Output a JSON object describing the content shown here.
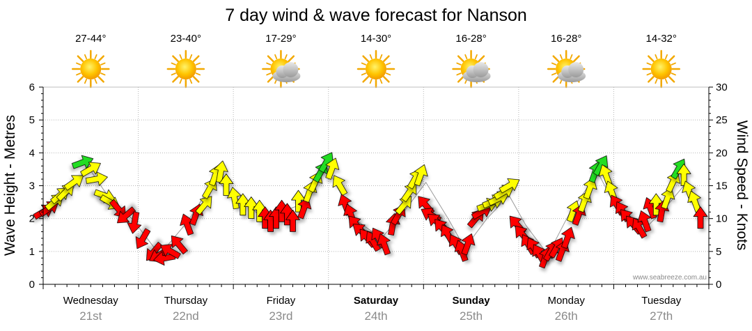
{
  "chart_data": {
    "type": "line",
    "title": "7 day wind & wave forecast for Nanson",
    "ylabel": "Wave Height - Metres",
    "y2label": "Wind Speed - Knots",
    "ylim": [
      0,
      6
    ],
    "y2lim": [
      0,
      30
    ],
    "yticks": [
      "0",
      "1",
      "2",
      "3",
      "4",
      "5",
      "6"
    ],
    "y2ticks": [
      "0",
      "5",
      "10",
      "15",
      "20",
      "25",
      "30"
    ],
    "watermark": "www.seabreeze.com.au",
    "days": [
      {
        "day": "Wednesday",
        "date": "21st",
        "temp": "27-44°",
        "weather": "sunny",
        "bold": false
      },
      {
        "day": "Thursday",
        "date": "22nd",
        "temp": "23-40°",
        "weather": "sunny",
        "bold": false
      },
      {
        "day": "Friday",
        "date": "23rd",
        "temp": "17-29°",
        "weather": "partly-cloudy",
        "bold": false
      },
      {
        "day": "Saturday",
        "date": "24th",
        "temp": "14-30°",
        "weather": "sunny",
        "bold": true
      },
      {
        "day": "Sunday",
        "date": "25th",
        "temp": "16-28°",
        "weather": "partly-cloudy",
        "bold": true
      },
      {
        "day": "Monday",
        "date": "26th",
        "temp": "16-28°",
        "weather": "partly-cloudy",
        "bold": false
      },
      {
        "day": "Tuesday",
        "date": "27th",
        "temp": "14-32°",
        "weather": "sunny",
        "bold": false
      }
    ],
    "colors": {
      "red": "#ff0000",
      "yellow": "#ffff00",
      "green": "#22dd22"
    },
    "wind": {
      "unit": "knots",
      "description": "wind speed at each time step (x in days from start of chart); arrow colour, rotation in degrees",
      "points": [
        {
          "x": 0.0,
          "speed": 11.0,
          "color": "red",
          "rot": 60
        },
        {
          "x": 0.1,
          "speed": 11.5,
          "color": "red",
          "rot": 55
        },
        {
          "x": 0.2,
          "speed": 12.5,
          "color": "yellow",
          "rot": 50
        },
        {
          "x": 0.3,
          "speed": 13.5,
          "color": "yellow",
          "rot": 50
        },
        {
          "x": 0.4,
          "speed": 14.0,
          "color": "yellow",
          "rot": 45
        },
        {
          "x": 0.55,
          "speed": 15.5,
          "color": "yellow",
          "rot": 55
        },
        {
          "x": 0.7,
          "speed": 18.5,
          "color": "green",
          "rot": 70
        },
        {
          "x": 0.85,
          "speed": 17.5,
          "color": "yellow",
          "rot": 60
        },
        {
          "x": 0.95,
          "speed": 16.0,
          "color": "yellow",
          "rot": 80
        },
        {
          "x": 1.1,
          "speed": 13.5,
          "color": "yellow",
          "rot": 110
        },
        {
          "x": 1.2,
          "speed": 12.5,
          "color": "yellow",
          "rot": 120
        },
        {
          "x": 1.35,
          "speed": 11.5,
          "color": "red",
          "rot": 140
        },
        {
          "x": 1.5,
          "speed": 10.5,
          "color": "red",
          "rot": 230
        },
        {
          "x": 1.65,
          "speed": 9.5,
          "color": "red",
          "rot": 190
        },
        {
          "x": 1.8,
          "speed": 7.0,
          "color": "red",
          "rot": 210
        },
        {
          "x": 2.0,
          "speed": 5.0,
          "color": "red",
          "rot": 220
        },
        {
          "x": 2.1,
          "speed": 4.5,
          "color": "red",
          "rot": 240
        },
        {
          "x": 2.2,
          "speed": 4.0,
          "color": "red",
          "rot": 260
        },
        {
          "x": 2.3,
          "speed": 5.0,
          "color": "red",
          "rot": 300
        },
        {
          "x": 2.45,
          "speed": 6.0,
          "color": "red",
          "rot": 320
        },
        {
          "x": 2.6,
          "speed": 9.0,
          "color": "red",
          "rot": 340
        },
        {
          "x": 2.75,
          "speed": 10.5,
          "color": "red",
          "rot": 20
        },
        {
          "x": 2.9,
          "speed": 12.0,
          "color": "yellow",
          "rot": 40
        },
        {
          "x": 3.0,
          "speed": 14.5,
          "color": "yellow",
          "rot": 30
        },
        {
          "x": 3.1,
          "speed": 16.5,
          "color": "yellow",
          "rot": 20
        },
        {
          "x": 3.2,
          "speed": 17.0,
          "color": "yellow",
          "rot": 10
        },
        {
          "x": 3.3,
          "speed": 15.0,
          "color": "yellow",
          "rot": 0
        },
        {
          "x": 3.45,
          "speed": 13.0,
          "color": "yellow",
          "rot": 350
        },
        {
          "x": 3.6,
          "speed": 12.0,
          "color": "yellow",
          "rot": 0
        },
        {
          "x": 3.75,
          "speed": 11.5,
          "color": "yellow",
          "rot": 0
        },
        {
          "x": 3.9,
          "speed": 11.0,
          "color": "yellow",
          "rot": 0
        },
        {
          "x": 4.0,
          "speed": 10.0,
          "color": "red",
          "rot": 0
        },
        {
          "x": 4.1,
          "speed": 9.5,
          "color": "red",
          "rot": 0
        },
        {
          "x": 4.2,
          "speed": 10.0,
          "color": "red",
          "rot": 0
        },
        {
          "x": 4.3,
          "speed": 11.0,
          "color": "red",
          "rot": 0
        },
        {
          "x": 4.4,
          "speed": 10.5,
          "color": "red",
          "rot": 0
        },
        {
          "x": 4.5,
          "speed": 9.5,
          "color": "red",
          "rot": 0
        },
        {
          "x": 4.6,
          "speed": 12.5,
          "color": "yellow",
          "rot": 0
        },
        {
          "x": 4.7,
          "speed": 11.5,
          "color": "red",
          "rot": 20
        },
        {
          "x": 4.8,
          "speed": 14.0,
          "color": "yellow",
          "rot": 20
        },
        {
          "x": 4.9,
          "speed": 15.5,
          "color": "yellow",
          "rot": 25
        },
        {
          "x": 5.0,
          "speed": 17.0,
          "color": "green",
          "rot": 30
        },
        {
          "x": 5.1,
          "speed": 18.5,
          "color": "green",
          "rot": 30
        },
        {
          "x": 5.2,
          "speed": 17.5,
          "color": "yellow",
          "rot": 20
        },
        {
          "x": 5.35,
          "speed": 15.0,
          "color": "yellow",
          "rot": 330
        },
        {
          "x": 5.45,
          "speed": 12.0,
          "color": "red",
          "rot": 340
        },
        {
          "x": 5.55,
          "speed": 10.5,
          "color": "red",
          "rot": 340
        },
        {
          "x": 5.65,
          "speed": 9.0,
          "color": "red",
          "rot": 320
        },
        {
          "x": 5.75,
          "speed": 8.0,
          "color": "red",
          "rot": 310
        },
        {
          "x": 5.85,
          "speed": 7.0,
          "color": "red",
          "rot": 320
        },
        {
          "x": 5.95,
          "speed": 6.5,
          "color": "red",
          "rot": 330
        },
        {
          "x": 6.05,
          "speed": 7.0,
          "color": "red",
          "rot": 330
        },
        {
          "x": 6.15,
          "speed": 6.0,
          "color": "red",
          "rot": 340
        },
        {
          "x": 6.3,
          "speed": 9.0,
          "color": "red",
          "rot": 10
        },
        {
          "x": 6.4,
          "speed": 10.5,
          "color": "red",
          "rot": 30
        },
        {
          "x": 6.5,
          "speed": 12.0,
          "color": "yellow",
          "rot": 40
        },
        {
          "x": 6.6,
          "speed": 14.0,
          "color": "yellow",
          "rot": 35
        },
        {
          "x": 6.7,
          "speed": 16.0,
          "color": "yellow",
          "rot": 30
        },
        {
          "x": 6.8,
          "speed": 16.5,
          "color": "yellow",
          "rot": 20
        },
        {
          "x": 6.9,
          "speed": 12.0,
          "color": "red",
          "rot": 320
        },
        {
          "x": 7.0,
          "speed": 10.5,
          "color": "red",
          "rot": 300
        },
        {
          "x": 7.1,
          "speed": 9.5,
          "color": "red",
          "rot": 310
        },
        {
          "x": 7.2,
          "speed": 8.5,
          "color": "red",
          "rot": 320
        },
        {
          "x": 7.3,
          "speed": 7.5,
          "color": "red",
          "rot": 330
        },
        {
          "x": 7.45,
          "speed": 6.0,
          "color": "red",
          "rot": 330
        },
        {
          "x": 7.55,
          "speed": 5.0,
          "color": "red",
          "rot": 340
        },
        {
          "x": 7.65,
          "speed": 6.0,
          "color": "red",
          "rot": 20
        },
        {
          "x": 7.8,
          "speed": 10.0,
          "color": "red",
          "rot": 40
        },
        {
          "x": 7.9,
          "speed": 11.0,
          "color": "red",
          "rot": 60
        },
        {
          "x": 8.0,
          "speed": 12.0,
          "color": "yellow",
          "rot": 70
        },
        {
          "x": 8.1,
          "speed": 12.5,
          "color": "yellow",
          "rot": 70
        },
        {
          "x": 8.2,
          "speed": 13.0,
          "color": "yellow",
          "rot": 65
        },
        {
          "x": 8.3,
          "speed": 14.0,
          "color": "yellow",
          "rot": 60
        },
        {
          "x": 8.4,
          "speed": 15.0,
          "color": "yellow",
          "rot": 60
        },
        {
          "x": 8.55,
          "speed": 9.0,
          "color": "red",
          "rot": 320
        },
        {
          "x": 8.65,
          "speed": 7.5,
          "color": "red",
          "rot": 320
        },
        {
          "x": 8.75,
          "speed": 6.0,
          "color": "red",
          "rot": 330
        },
        {
          "x": 8.85,
          "speed": 5.5,
          "color": "red",
          "rot": 330
        },
        {
          "x": 8.95,
          "speed": 4.5,
          "color": "red",
          "rot": 330
        },
        {
          "x": 9.05,
          "speed": 4.0,
          "color": "red",
          "rot": 20
        },
        {
          "x": 9.15,
          "speed": 5.0,
          "color": "red",
          "rot": 30
        },
        {
          "x": 9.25,
          "speed": 5.5,
          "color": "red",
          "rot": 30
        },
        {
          "x": 9.35,
          "speed": 5.0,
          "color": "red",
          "rot": 20
        },
        {
          "x": 9.45,
          "speed": 7.0,
          "color": "red",
          "rot": 20
        },
        {
          "x": 9.55,
          "speed": 11.0,
          "color": "yellow",
          "rot": 20
        },
        {
          "x": 9.65,
          "speed": 10.5,
          "color": "red",
          "rot": 20
        },
        {
          "x": 9.75,
          "speed": 12.5,
          "color": "yellow",
          "rot": 20
        },
        {
          "x": 9.85,
          "speed": 14.5,
          "color": "yellow",
          "rot": 20
        },
        {
          "x": 9.95,
          "speed": 17.0,
          "color": "green",
          "rot": 20
        },
        {
          "x": 10.05,
          "speed": 18.0,
          "color": "green",
          "rot": 30
        },
        {
          "x": 10.15,
          "speed": 16.5,
          "color": "yellow",
          "rot": 340
        },
        {
          "x": 10.25,
          "speed": 14.0,
          "color": "yellow",
          "rot": 340
        },
        {
          "x": 10.35,
          "speed": 12.0,
          "color": "red",
          "rot": 330
        },
        {
          "x": 10.45,
          "speed": 11.0,
          "color": "red",
          "rot": 330
        },
        {
          "x": 10.55,
          "speed": 10.0,
          "color": "red",
          "rot": 320
        },
        {
          "x": 10.65,
          "speed": 9.0,
          "color": "red",
          "rot": 320
        },
        {
          "x": 10.75,
          "speed": 8.5,
          "color": "red",
          "rot": 330
        },
        {
          "x": 10.85,
          "speed": 9.5,
          "color": "red",
          "rot": 340
        },
        {
          "x": 10.95,
          "speed": 11.5,
          "color": "red",
          "rot": 340
        },
        {
          "x": 11.05,
          "speed": 12.0,
          "color": "yellow",
          "rot": 0
        },
        {
          "x": 11.15,
          "speed": 11.0,
          "color": "red",
          "rot": 10
        },
        {
          "x": 11.25,
          "speed": 13.0,
          "color": "yellow",
          "rot": 20
        },
        {
          "x": 11.35,
          "speed": 15.5,
          "color": "yellow",
          "rot": 25
        },
        {
          "x": 11.45,
          "speed": 17.5,
          "color": "green",
          "rot": 30
        },
        {
          "x": 11.55,
          "speed": 16.5,
          "color": "yellow",
          "rot": 0
        },
        {
          "x": 11.65,
          "speed": 14.0,
          "color": "yellow",
          "rot": 340
        },
        {
          "x": 11.75,
          "speed": 12.5,
          "color": "yellow",
          "rot": 340
        },
        {
          "x": 11.85,
          "speed": 10.0,
          "color": "red",
          "rot": 0
        }
      ]
    },
    "wave": {
      "unit": "metres",
      "description": "significant wave height line (x in days)",
      "points": [
        {
          "x": 0.0,
          "value": 2.2
        },
        {
          "x": 0.5,
          "value": 2.8
        },
        {
          "x": 0.8,
          "value": 3.6
        },
        {
          "x": 1.2,
          "value": 2.6
        },
        {
          "x": 1.6,
          "value": 2.0
        },
        {
          "x": 2.1,
          "value": 0.9
        },
        {
          "x": 2.6,
          "value": 1.9
        },
        {
          "x": 3.1,
          "value": 3.2
        },
        {
          "x": 3.5,
          "value": 2.6
        },
        {
          "x": 4.0,
          "value": 2.0
        },
        {
          "x": 4.6,
          "value": 2.4
        },
        {
          "x": 5.1,
          "value": 3.6
        },
        {
          "x": 5.6,
          "value": 2.0
        },
        {
          "x": 6.1,
          "value": 1.4
        },
        {
          "x": 6.5,
          "value": 2.2
        },
        {
          "x": 6.9,
          "value": 3.1
        },
        {
          "x": 7.3,
          "value": 2.0
        },
        {
          "x": 7.6,
          "value": 1.1
        },
        {
          "x": 8.0,
          "value": 2.0
        },
        {
          "x": 8.4,
          "value": 2.7
        },
        {
          "x": 8.7,
          "value": 1.8
        },
        {
          "x": 9.1,
          "value": 0.9
        },
        {
          "x": 9.5,
          "value": 2.2
        },
        {
          "x": 10.0,
          "value": 3.4
        },
        {
          "x": 10.4,
          "value": 2.1
        },
        {
          "x": 10.8,
          "value": 1.6
        },
        {
          "x": 11.2,
          "value": 2.3
        },
        {
          "x": 11.6,
          "value": 3.1
        },
        {
          "x": 11.9,
          "value": 2.2
        }
      ]
    }
  }
}
